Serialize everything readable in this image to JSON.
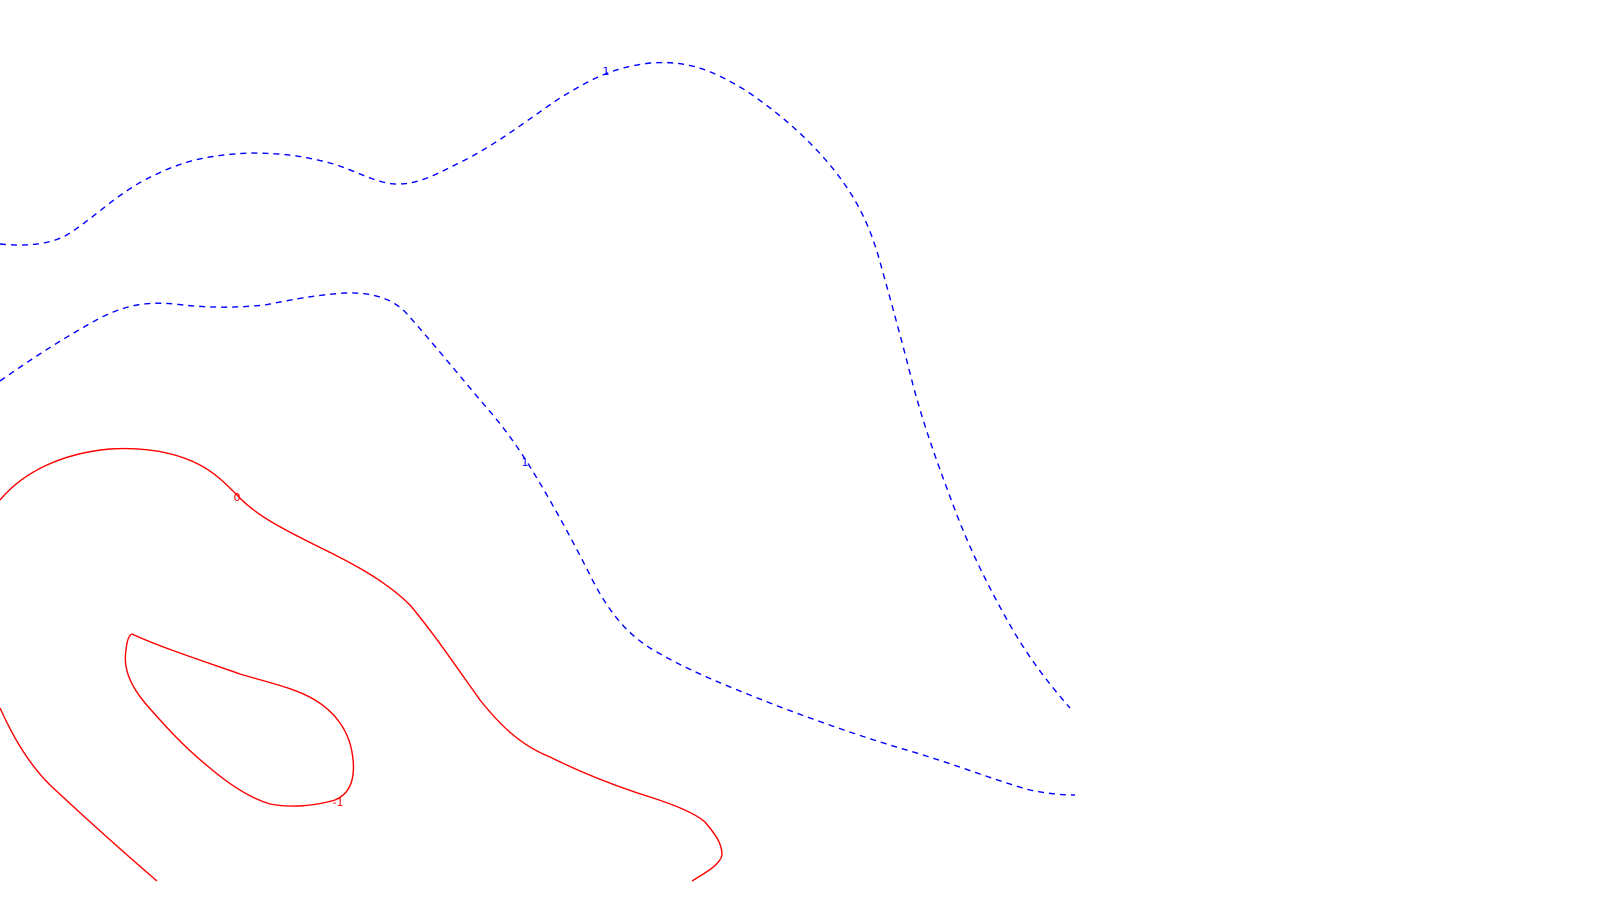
{
  "chart_data": {
    "type": "contour",
    "title": "",
    "xlabel": "",
    "ylabel": "",
    "grid": false,
    "legend": "none",
    "levels": [
      {
        "value": 1,
        "label": "1",
        "color": "#0000ff",
        "style": "dashed",
        "segments": 2
      },
      {
        "value": 0,
        "label": "0",
        "color": "#ff0000",
        "style": "solid",
        "segments": 1
      },
      {
        "value": -1,
        "label": "-1",
        "color": "#ff0000",
        "style": "solid",
        "segments": 1
      }
    ]
  },
  "labels": {
    "outer_one": "1",
    "inner_one": "1",
    "zero": "0",
    "minus_one": "-1"
  }
}
